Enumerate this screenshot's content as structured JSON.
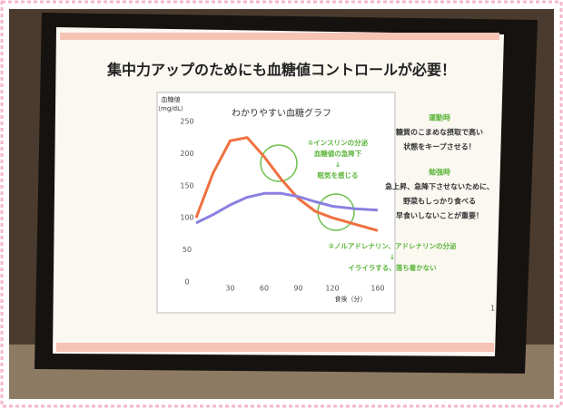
{
  "slide": {
    "title": "集中力アップのためにも血糖値コントロールが必要！",
    "page_number": "1",
    "side_notes": [
      {
        "heading": "運動時",
        "lines": [
          "糖質のこまめな摂取で高い",
          "状態をキープさせる！"
        ]
      },
      {
        "heading": "勉強時",
        "lines": [
          "急上昇、急降下させないために、",
          "野菜もしっかり食べる",
          "早食いしないことが重要！"
        ]
      }
    ]
  },
  "chart_data": {
    "type": "line",
    "title": "わかりやすい血糖グラフ",
    "ylabel": [
      "血糖値",
      "（mg/dL）"
    ],
    "xlabel": "食後（分）",
    "x": [
      0,
      15,
      30,
      45,
      60,
      75,
      90,
      105,
      120,
      140,
      160
    ],
    "series": [
      {
        "color": "#f07040",
        "values": [
          100,
          170,
          220,
          225,
          195,
          160,
          130,
          110,
          100,
          90,
          80
        ]
      },
      {
        "color": "#8a80e0",
        "values": [
          92,
          105,
          120,
          132,
          138,
          138,
          133,
          125,
          118,
          114,
          112
        ]
      }
    ],
    "xlim": [
      0,
      160
    ],
    "xticks": [
      30,
      60,
      90,
      120,
      160
    ],
    "ylim": [
      0,
      250
    ],
    "yticks": [
      0,
      50,
      100,
      150,
      200,
      250
    ],
    "annotations": [
      {
        "lines": [
          "①インスリンの分泌",
          "血糖値の急降下",
          "↓",
          "眠気を感じる"
        ]
      },
      {
        "lines": [
          "②ノルアドレナリン、アドレナリンの分泌",
          "↓",
          "イライラする、落ち着かない"
        ]
      }
    ]
  }
}
